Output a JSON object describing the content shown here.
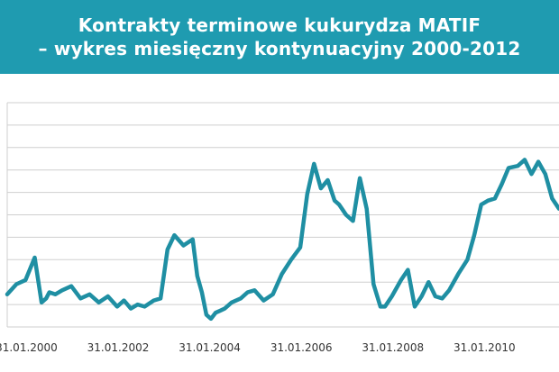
{
  "header": {
    "title_line1": "Kontrakty terminowe kukurydza MATIF",
    "title_line2": "– wykres miesięczny kontynuacyjny 2000-2012"
  },
  "colors": {
    "banner": "#1f9bb0",
    "series": "#1f8fa3",
    "grid": "#cfcfcf"
  },
  "chart_data": {
    "type": "line",
    "title": "Kontrakty terminowe kukurydza MATIF – wykres miesięczny kontynuacyjny 2000-2012",
    "xlabel": "",
    "ylabel": "",
    "grid": true,
    "y_ticks_labeled": false,
    "x_tick_labels": [
      "31.01.2000",
      "31.01.2002",
      "31.01.2004",
      "31.01.2006",
      "31.01.2008",
      "31.01.2010"
    ],
    "x_tick_years": [
      2000.083,
      2002.083,
      2004.083,
      2006.083,
      2008.083,
      2010.083
    ],
    "xlim": [
      1999.7,
      2011.75
    ],
    "ylim": [
      0,
      11
    ],
    "series": [
      {
        "name": "",
        "x": [
          1999.7,
          1999.9,
          2000.1,
          2000.3,
          2000.45,
          2000.55,
          2000.62,
          2000.75,
          2000.9,
          2001.1,
          2001.3,
          2001.5,
          2001.7,
          2001.9,
          2002.1,
          2002.25,
          2002.4,
          2002.55,
          2002.7,
          2002.9,
          2003.05,
          2003.2,
          2003.35,
          2003.55,
          2003.75,
          2003.85,
          2003.95,
          2004.05,
          2004.15,
          2004.25,
          2004.35,
          2004.45,
          2004.6,
          2004.8,
          2004.95,
          2005.1,
          2005.3,
          2005.5,
          2005.7,
          2005.9,
          2006.1,
          2006.25,
          2006.4,
          2006.55,
          2006.7,
          2006.85,
          2006.95,
          2007.1,
          2007.25,
          2007.4,
          2007.55,
          2007.7,
          2007.85,
          2007.95,
          2008.1,
          2008.3,
          2008.45,
          2008.6,
          2008.75,
          2008.9,
          2009.05,
          2009.2,
          2009.35,
          2009.55,
          2009.75,
          2009.9,
          2010.05,
          2010.2,
          2010.35,
          2010.5,
          2010.65,
          2010.85,
          2011.0,
          2011.15,
          2011.3,
          2011.45,
          2011.6,
          2011.75
        ],
        "values": [
          1.6,
          2.1,
          2.3,
          3.4,
          1.2,
          1.4,
          1.7,
          1.6,
          1.8,
          2.0,
          1.4,
          1.6,
          1.2,
          1.5,
          1.0,
          1.3,
          0.9,
          1.1,
          1.0,
          1.3,
          1.4,
          3.8,
          4.5,
          4.0,
          4.3,
          2.5,
          1.7,
          0.6,
          0.4,
          0.7,
          0.8,
          0.9,
          1.2,
          1.4,
          1.7,
          1.8,
          1.3,
          1.6,
          2.6,
          3.3,
          3.9,
          6.5,
          8.0,
          6.8,
          7.2,
          6.2,
          6.0,
          5.5,
          5.2,
          7.3,
          5.8,
          2.1,
          1.0,
          1.0,
          1.5,
          2.3,
          2.8,
          1.0,
          1.5,
          2.2,
          1.5,
          1.4,
          1.8,
          2.6,
          3.3,
          4.5,
          6.0,
          6.2,
          6.3,
          7.0,
          7.8,
          7.9,
          8.2,
          7.5,
          8.1,
          7.5,
          6.3,
          5.8
        ]
      }
    ]
  }
}
